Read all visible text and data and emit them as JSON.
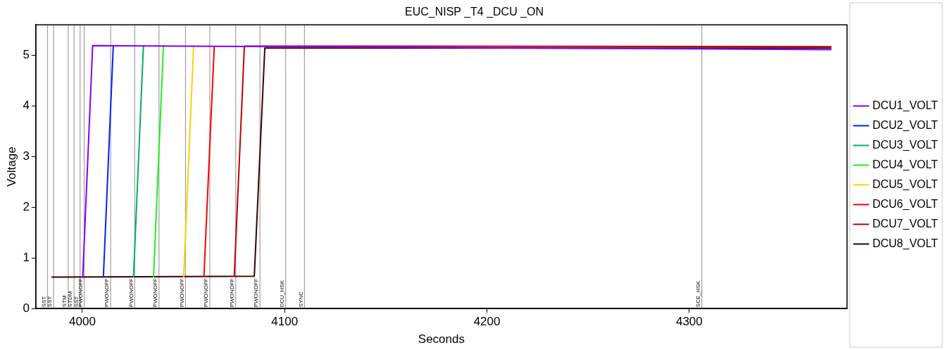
{
  "chart_data": {
    "type": "line",
    "title": "EUC_NISP _T4 _DCU _ON",
    "xlabel": "Seconds",
    "ylabel": "Voltage",
    "xlim": [
      3977,
      4378
    ],
    "xticks": [
      4000,
      4100,
      4200,
      4300
    ],
    "ylim": [
      0,
      5.6
    ],
    "yticks": [
      0,
      1,
      2,
      3,
      4,
      5
    ],
    "grid": false,
    "legend": "right",
    "marker": "none",
    "line_style": "solid",
    "series": [
      {
        "name": "DCU1_VOLT",
        "color": "#7f00ff",
        "x": [
          4000.2,
          4005.1,
          4370
        ],
        "values": [
          0.62,
          5.19,
          5.11
        ]
      },
      {
        "name": "DCU2_VOLT",
        "color": "#0022ff",
        "x": [
          4010.4,
          4015.3
        ],
        "values": [
          0.62,
          5.19
        ]
      },
      {
        "name": "DCU3_VOLT",
        "color": "#00b060",
        "x": [
          4025.3,
          4030.2
        ],
        "values": [
          0.63,
          5.19
        ]
      },
      {
        "name": "DCU4_VOLT",
        "color": "#22ee22",
        "x": [
          4035.2,
          4040.1
        ],
        "values": [
          0.63,
          5.19
        ]
      },
      {
        "name": "DCU5_VOLT",
        "color": "#ffd000",
        "x": [
          4050.1,
          4055
        ],
        "values": [
          0.63,
          5.18
        ]
      },
      {
        "name": "DCU6_VOLT",
        "color": "#ff0000",
        "x": [
          4060.1,
          4065.2
        ],
        "values": [
          0.63,
          5.17
        ]
      },
      {
        "name": "DCU7_VOLT",
        "color": "#c00000",
        "x": [
          4075.1,
          4080.1,
          4370
        ],
        "values": [
          0.64,
          5.18,
          5.17
        ]
      },
      {
        "name": "DCU8_VOLT",
        "color": "#3a0000",
        "x": [
          3985,
          4085,
          4090.2,
          4370
        ],
        "values": [
          0.62,
          0.64,
          5.14,
          5.14
        ]
      }
    ],
    "ref_lines": [
      {
        "axis": "x",
        "value": 3982.8,
        "label": "SST"
      },
      {
        "axis": "x",
        "value": 3985.8,
        "label": "SST"
      },
      {
        "axis": "x",
        "value": 3993.0,
        "label": "STM"
      },
      {
        "axis": "x",
        "value": 3995.9,
        "label": "STDM"
      },
      {
        "axis": "x",
        "value": 3998.9,
        "label": "SST"
      },
      {
        "axis": "x",
        "value": 4000.9,
        "label": "PWONOFF"
      },
      {
        "axis": "x",
        "value": 4014.0,
        "label": "PWONOFF"
      },
      {
        "axis": "x",
        "value": 4025.9,
        "label": "PWONOFF"
      },
      {
        "axis": "x",
        "value": 4037.9,
        "label": "PWONOFF"
      },
      {
        "axis": "x",
        "value": 4051.0,
        "label": "PWONOFF"
      },
      {
        "axis": "x",
        "value": 4063.0,
        "label": "PWONOFF"
      },
      {
        "axis": "x",
        "value": 4075.8,
        "label": "PWONOFF"
      },
      {
        "axis": "x",
        "value": 4087.8,
        "label": "PWONOFF"
      },
      {
        "axis": "x",
        "value": 4100.5,
        "label": "DCU_HSK"
      },
      {
        "axis": "x",
        "value": 4109.8,
        "label": "SYNC"
      },
      {
        "axis": "x",
        "value": 4306.2,
        "label": "SCE_HSK"
      }
    ]
  }
}
